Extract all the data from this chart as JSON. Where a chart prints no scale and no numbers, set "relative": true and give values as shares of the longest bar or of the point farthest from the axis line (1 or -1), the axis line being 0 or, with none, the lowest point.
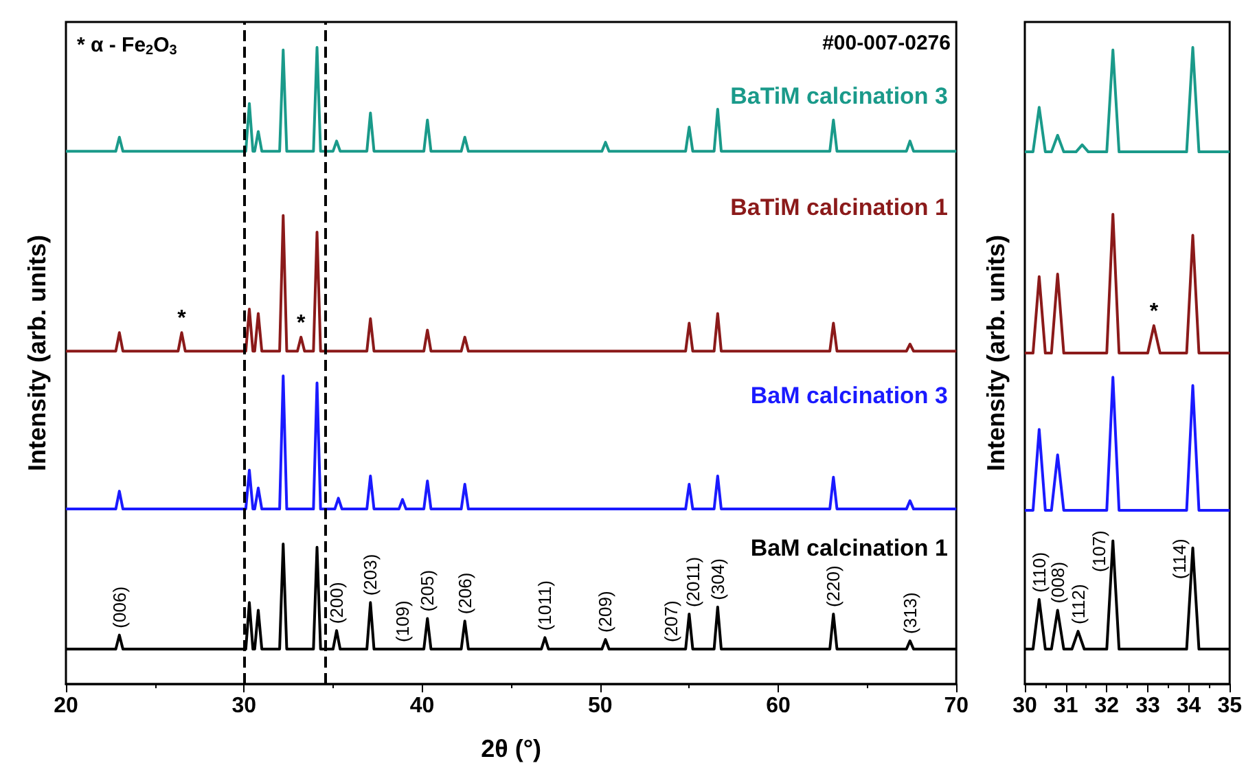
{
  "chart_data": [
    {
      "type": "line",
      "xlabel": "2θ (°)",
      "ylabel": "Intensity (arb. units)",
      "relative": true,
      "xlim": [
        20,
        70
      ],
      "xticks": [
        20,
        30,
        40,
        50,
        60,
        70
      ],
      "legend": false,
      "grid": false,
      "series": [
        {
          "name": "BaTiM calcination 3",
          "color": "#1a9a8a",
          "x": [
            20,
            22.8,
            23,
            23.2,
            30.1,
            30.3,
            30.5,
            30.6,
            30.8,
            31,
            32,
            32.2,
            32.4,
            33.9,
            34.1,
            34.3,
            35,
            35.2,
            35.4,
            36.9,
            37.1,
            37.3,
            40.1,
            40.3,
            40.5,
            42.2,
            42.4,
            42.6,
            50.1,
            50.3,
            50.5,
            54.8,
            55,
            55.2,
            56.4,
            56.6,
            56.8,
            62.9,
            63.1,
            63.3,
            67.2,
            67.4,
            67.6,
            70
          ],
          "values": [
            0.837,
            0.837,
            0.859,
            0.837,
            0.837,
            0.912,
            0.837,
            0.837,
            0.868,
            0.837,
            0.837,
            0.996,
            0.837,
            0.837,
            1.0,
            0.837,
            0.837,
            0.853,
            0.837,
            0.837,
            0.897,
            0.837,
            0.837,
            0.886,
            0.837,
            0.837,
            0.859,
            0.837,
            0.837,
            0.851,
            0.837,
            0.837,
            0.875,
            0.837,
            0.837,
            0.903,
            0.837,
            0.837,
            0.886,
            0.837,
            0.837,
            0.853,
            0.837,
            0.837
          ]
        },
        {
          "name": "BaTiM calcination 1",
          "color": "#8b1a1a",
          "x": [
            20,
            22.8,
            23,
            23.2,
            26.3,
            26.5,
            26.7,
            30.1,
            30.3,
            30.5,
            30.6,
            30.8,
            31,
            32,
            32.2,
            32.4,
            33,
            33.2,
            33.4,
            33.9,
            34.1,
            34.3,
            36.9,
            37.1,
            37.3,
            40.1,
            40.3,
            40.5,
            42.2,
            42.4,
            42.6,
            54.8,
            55,
            55.2,
            56.4,
            56.6,
            56.8,
            62.9,
            63.1,
            63.3,
            67.2,
            67.4,
            67.6,
            70
          ],
          "values": [
            0.523,
            0.523,
            0.552,
            0.523,
            0.523,
            0.552,
            0.523,
            0.523,
            0.589,
            0.523,
            0.523,
            0.582,
            0.523,
            0.523,
            0.736,
            0.523,
            0.523,
            0.545,
            0.523,
            0.523,
            0.71,
            0.523,
            0.523,
            0.574,
            0.523,
            0.523,
            0.556,
            0.523,
            0.523,
            0.545,
            0.523,
            0.523,
            0.567,
            0.523,
            0.523,
            0.582,
            0.523,
            0.523,
            0.567,
            0.523,
            0.523,
            0.534,
            0.523,
            0.523
          ]
        },
        {
          "name": "BaM calcination 3",
          "color": "#1a1aff",
          "x": [
            20,
            22.8,
            23,
            23.2,
            30.1,
            30.3,
            30.5,
            30.6,
            30.8,
            31,
            32,
            32.2,
            32.4,
            33.9,
            34.1,
            34.3,
            35.1,
            35.3,
            35.5,
            36.9,
            37.1,
            37.3,
            38.7,
            38.9,
            39.1,
            40.1,
            40.3,
            40.5,
            42.2,
            42.4,
            42.6,
            54.8,
            55,
            55.2,
            56.4,
            56.6,
            56.8,
            62.9,
            63.1,
            63.3,
            67.2,
            67.4,
            67.6,
            70
          ],
          "values": [
            0.275,
            0.275,
            0.303,
            0.275,
            0.275,
            0.336,
            0.275,
            0.275,
            0.308,
            0.275,
            0.275,
            0.484,
            0.275,
            0.275,
            0.473,
            0.275,
            0.275,
            0.292,
            0.275,
            0.275,
            0.327,
            0.275,
            0.275,
            0.29,
            0.275,
            0.275,
            0.319,
            0.275,
            0.275,
            0.314,
            0.275,
            0.275,
            0.314,
            0.275,
            0.275,
            0.327,
            0.275,
            0.275,
            0.325,
            0.275,
            0.275,
            0.288,
            0.275,
            0.275
          ]
        },
        {
          "name": "BaM calcination 1",
          "color": "#000000",
          "x": [
            20,
            22.8,
            23,
            23.2,
            30.1,
            30.3,
            30.5,
            30.6,
            30.8,
            31,
            32,
            32.2,
            32.4,
            33.9,
            34.1,
            34.3,
            35,
            35.2,
            35.4,
            36.9,
            37.1,
            37.3,
            40.1,
            40.3,
            40.5,
            42.2,
            42.4,
            42.6,
            46.7,
            46.9,
            47.1,
            50.1,
            50.3,
            50.5,
            54.8,
            55,
            55.2,
            56.4,
            56.6,
            56.8,
            62.9,
            63.1,
            63.3,
            67.2,
            67.4,
            67.6,
            70
          ],
          "values": [
            0.055,
            0.055,
            0.077,
            0.055,
            0.055,
            0.128,
            0.055,
            0.055,
            0.116,
            0.055,
            0.055,
            0.22,
            0.055,
            0.055,
            0.215,
            0.055,
            0.055,
            0.084,
            0.055,
            0.055,
            0.128,
            0.055,
            0.055,
            0.103,
            0.055,
            0.055,
            0.099,
            0.055,
            0.055,
            0.073,
            0.055,
            0.055,
            0.07,
            0.055,
            0.055,
            0.11,
            0.055,
            0.055,
            0.121,
            0.055,
            0.055,
            0.11,
            0.055,
            0.055,
            0.068,
            0.055,
            0.055
          ]
        }
      ],
      "ref_lines": [
        {
          "axis": "x",
          "value": 30,
          "color": "#000000",
          "line_style": "dashed"
        },
        {
          "axis": "x",
          "value": 34.6,
          "color": "#000000",
          "line_style": "dashed"
        }
      ],
      "annotations": [
        "* α - Fe$_{2}$O$_{3}$",
        "#00-007-0276",
        {
          "text": "*",
          "x": 26.5,
          "y": 0.552
        },
        {
          "text": "*",
          "x": 33.2,
          "y": 0.545
        },
        {
          "text": "(006)",
          "x": 23,
          "y": 0.077
        },
        {
          "text": "(200)",
          "x": 35.2,
          "y": 0.084
        },
        {
          "text": "(203)",
          "x": 37.1,
          "y": 0.128
        },
        {
          "text": "(109)",
          "x": 38.9,
          "y": 0.055
        },
        {
          "text": "(205)",
          "x": 40.3,
          "y": 0.103
        },
        {
          "text": "(206)",
          "x": 42.4,
          "y": 0.099
        },
        {
          "text": "(1011)",
          "x": 46.9,
          "y": 0.073
        },
        {
          "text": "(209)",
          "x": 50.3,
          "y": 0.07
        },
        {
          "text": "(207)",
          "x": 54,
          "y": 0.055
        },
        {
          "text": "(2011)",
          "x": 55.2,
          "y": 0.11
        },
        {
          "text": "(304)",
          "x": 56.6,
          "y": 0.121
        },
        {
          "text": "(220)",
          "x": 63.1,
          "y": 0.11
        },
        {
          "text": "(313)",
          "x": 67.4,
          "y": 0.068
        }
      ]
    },
    {
      "type": "line",
      "ylabel": "Intensity (arb. units)",
      "relative": true,
      "xlim": [
        30,
        35
      ],
      "xticks": [
        30,
        31,
        32,
        33,
        34,
        35
      ],
      "legend": false,
      "grid": false,
      "series": [
        {
          "color": "#1a9a8a",
          "x": [
            30,
            30.2,
            30.35,
            30.5,
            30.65,
            30.8,
            30.95,
            31.25,
            31.4,
            31.55,
            32,
            32.15,
            32.3,
            33.95,
            34.1,
            34.25,
            35
          ],
          "values": [
            0.836,
            0.836,
            0.906,
            0.836,
            0.836,
            0.862,
            0.836,
            0.836,
            0.847,
            0.836,
            0.836,
            0.996,
            0.836,
            0.836,
            1.0,
            0.836,
            0.836
          ]
        },
        {
          "color": "#8b1a1a",
          "x": [
            30,
            30.2,
            30.35,
            30.5,
            30.65,
            30.8,
            30.95,
            32,
            32.15,
            32.3,
            33,
            33.15,
            33.3,
            33.95,
            34.1,
            34.25,
            35
          ],
          "values": [
            0.52,
            0.52,
            0.64,
            0.52,
            0.52,
            0.644,
            0.52,
            0.52,
            0.738,
            0.52,
            0.52,
            0.563,
            0.52,
            0.52,
            0.705,
            0.52,
            0.52
          ]
        },
        {
          "color": "#1a1aff",
          "x": [
            30,
            30.2,
            30.35,
            30.5,
            30.65,
            30.8,
            30.95,
            32,
            32.15,
            32.3,
            33.95,
            34.1,
            34.25,
            35
          ],
          "values": [
            0.273,
            0.273,
            0.4,
            0.273,
            0.273,
            0.36,
            0.273,
            0.273,
            0.482,
            0.273,
            0.273,
            0.469,
            0.273,
            0.273
          ]
        },
        {
          "color": "#000000",
          "x": [
            30,
            30.2,
            30.35,
            30.5,
            30.65,
            30.8,
            30.95,
            31.15,
            31.3,
            31.45,
            32,
            32.15,
            32.3,
            33.95,
            34.1,
            34.25,
            35
          ],
          "values": [
            0.055,
            0.055,
            0.133,
            0.055,
            0.055,
            0.116,
            0.055,
            0.055,
            0.083,
            0.055,
            0.055,
            0.225,
            0.055,
            0.055,
            0.214,
            0.055,
            0.055
          ]
        }
      ],
      "annotations": [
        {
          "text": "*",
          "x": 33.15,
          "y": 0.563
        },
        {
          "text": "(110)",
          "x": 30.35,
          "y": 0.133
        },
        {
          "text": "(008)",
          "x": 30.8,
          "y": 0.116
        },
        {
          "text": "(112)",
          "x": 31.3,
          "y": 0.083
        },
        {
          "text": "(107)",
          "x": 32.15,
          "y": 0.225
        },
        {
          "text": "(114)",
          "x": 34.1,
          "y": 0.214
        }
      ]
    }
  ]
}
